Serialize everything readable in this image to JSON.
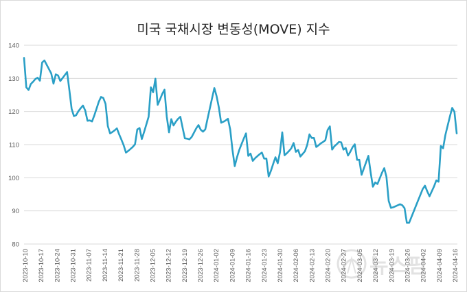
{
  "chart_data": {
    "type": "line",
    "title": "미국 국채시장 변동성(MOVE) 지수",
    "xlabel": "",
    "ylabel": "",
    "ylim": [
      80,
      140
    ],
    "yticks": [
      80,
      90,
      100,
      110,
      120,
      130,
      140
    ],
    "grid": "horizontal",
    "color": "#2a9fc6",
    "xtick_labels": [
      "2023-10-10",
      "2023-10-17",
      "2023-10-24",
      "2023-10-31",
      "2023-11-07",
      "2023-11-14",
      "2023-11-21",
      "2023-11-28",
      "2023-12-05",
      "2023-12-12",
      "2023-12-19",
      "2023-12-26",
      "2024-01-02",
      "2024-01-09",
      "2024-01-16",
      "2024-01-23",
      "2024-01-30",
      "2024-02-06",
      "2024-02-13",
      "2024-02-20",
      "2024-02-27",
      "2024-03-05",
      "2024-03-12",
      "2024-03-19",
      "2024-03-26",
      "2024-04-02",
      "2024-04-09",
      "2024-04-16"
    ],
    "series": [
      {
        "name": "MOVE",
        "values": [
          136.2,
          127.3,
          126.5,
          128.3,
          129.0,
          129.8,
          130.2,
          129.3,
          134.8,
          135.4,
          134.1,
          132.8,
          131.5,
          128.4,
          131.2,
          130.9,
          129.2,
          130.1,
          131.0,
          131.9,
          126.5,
          120.8,
          118.6,
          118.9,
          120.1,
          121.0,
          121.8,
          120.3,
          117.2,
          117.3,
          117.0,
          118.8,
          120.8,
          122.9,
          124.4,
          124.1,
          122.3,
          115.6,
          113.4,
          113.8,
          114.3,
          114.9,
          113.1,
          111.5,
          109.8,
          107.6,
          108.1,
          108.7,
          109.3,
          110.1,
          114.6,
          115.0,
          111.7,
          113.8,
          116.1,
          118.4,
          127.3,
          125.8,
          129.9,
          122.0,
          123.6,
          125.3,
          126.6,
          118.5,
          113.7,
          117.7,
          115.8,
          116.9,
          117.8,
          118.4,
          115.1,
          111.9,
          111.8,
          111.6,
          112.3,
          113.6,
          114.9,
          115.9,
          114.5,
          113.9,
          114.6,
          117.8,
          120.9,
          124.0,
          127.1,
          124.6,
          121.2,
          116.6,
          116.9,
          117.3,
          117.8,
          114.6,
          108.4,
          103.5,
          106.2,
          108.4,
          110.1,
          111.8,
          113.4,
          106.6,
          107.3,
          105.1,
          105.9,
          106.5,
          107.1,
          107.6,
          105.8,
          105.8,
          100.4,
          102.1,
          104.2,
          106.2,
          104.4,
          107.7,
          113.7,
          106.8,
          107.4,
          108.1,
          108.9,
          110.5,
          107.8,
          108.4,
          106.4,
          107.2,
          108.0,
          109.9,
          113.1,
          112.0,
          112.0,
          109.3,
          109.8,
          110.4,
          110.8,
          111.3,
          114.4,
          115.5,
          108.5,
          109.5,
          110.1,
          110.8,
          110.7,
          108.5,
          109.0,
          106.7,
          107.8,
          109.2,
          110.1,
          105.4,
          105.4,
          100.9,
          102.8,
          104.7,
          106.6,
          101.6,
          97.3,
          98.6,
          98.1,
          99.8,
          101.5,
          102.9,
          100.3,
          93.0,
          90.9,
          91.1,
          91.4,
          91.7,
          92.0,
          91.7,
          90.8,
          86.4,
          86.4,
          88.1,
          89.8,
          91.5,
          93.2,
          94.9,
          96.6,
          97.6,
          95.9,
          94.4,
          95.9,
          97.4,
          99.2,
          98.8,
          109.6,
          108.9,
          112.9,
          115.7,
          118.5,
          121.1,
          119.9,
          113.4
        ]
      }
    ]
  },
  "watermark": {
    "text": "뉴스핌"
  }
}
